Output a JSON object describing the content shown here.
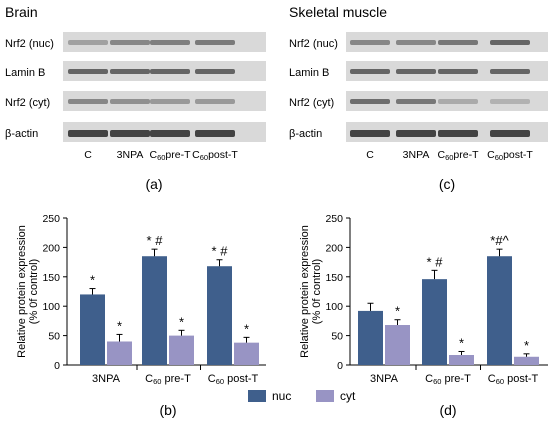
{
  "colors": {
    "nuc": "#3f5f8c",
    "cyt": "#9894c4",
    "axis": "#000000"
  },
  "blots": [
    {
      "title": "Brain",
      "rows": [
        "Nrf2 (nuc)",
        "Lamin B",
        "Nrf2 (cyt)",
        "β-actin"
      ],
      "lanes": [
        {
          "main": "C",
          "sub": ""
        },
        {
          "main": "3NPA",
          "sub": ""
        },
        {
          "main": "C",
          "sub": "60",
          "rest": "pre-T"
        },
        {
          "main": "C",
          "sub": "60",
          "rest": "post-T"
        }
      ],
      "panel": "(a)"
    },
    {
      "title": "Skeletal muscle",
      "rows": [
        "Nrf2 (nuc)",
        "Lamin B",
        "Nrf2 (cyt)",
        "β-actin"
      ],
      "lanes": [
        {
          "main": "C",
          "sub": ""
        },
        {
          "main": "3NPA",
          "sub": ""
        },
        {
          "main": "C",
          "sub": "60",
          "rest": "pre-T"
        },
        {
          "main": "C",
          "sub": "60",
          "rest": "post-T"
        }
      ],
      "panel": "(c)"
    }
  ],
  "chart_data": [
    {
      "type": "bar",
      "panel": "(b)",
      "ylabel": "Relative protein expression",
      "ylabel2": "(% 0f control)",
      "ylim": [
        0,
        250
      ],
      "yticks": [
        0,
        50,
        100,
        150,
        200,
        250
      ],
      "categories": [
        {
          "main": "3NPA",
          "sub": "",
          "rest": ""
        },
        {
          "main": "C",
          "sub": "60",
          "rest": " pre-T"
        },
        {
          "main": "C",
          "sub": "60",
          "rest": " post-T"
        }
      ],
      "series": [
        {
          "name": "nuc",
          "values": [
            120,
            185,
            168
          ],
          "errors": [
            10,
            12,
            11
          ],
          "marks": [
            "*",
            "* #",
            "* #"
          ]
        },
        {
          "name": "cyt",
          "values": [
            40,
            50,
            38
          ],
          "errors": [
            12,
            9,
            9
          ],
          "marks": [
            "*",
            "*",
            "*"
          ]
        }
      ]
    },
    {
      "type": "bar",
      "panel": "(d)",
      "ylabel": "Relative protein expression",
      "ylabel2": "(% 0f control)",
      "ylim": [
        0,
        250
      ],
      "yticks": [
        0,
        50,
        100,
        150,
        200,
        250
      ],
      "categories": [
        {
          "main": "3NPA",
          "sub": "",
          "rest": ""
        },
        {
          "main": "C",
          "sub": "60",
          "rest": " pre-T"
        },
        {
          "main": "C",
          "sub": "60",
          "rest": " post-T"
        }
      ],
      "series": [
        {
          "name": "nuc",
          "values": [
            92,
            146,
            185
          ],
          "errors": [
            13,
            15,
            12
          ],
          "marks": [
            "",
            "* #",
            "*#^"
          ]
        },
        {
          "name": "cyt",
          "values": [
            68,
            17,
            14
          ],
          "errors": [
            9,
            6,
            5
          ],
          "marks": [
            "*",
            "*",
            "*"
          ]
        }
      ]
    }
  ],
  "legend": [
    "nuc",
    "cyt"
  ]
}
